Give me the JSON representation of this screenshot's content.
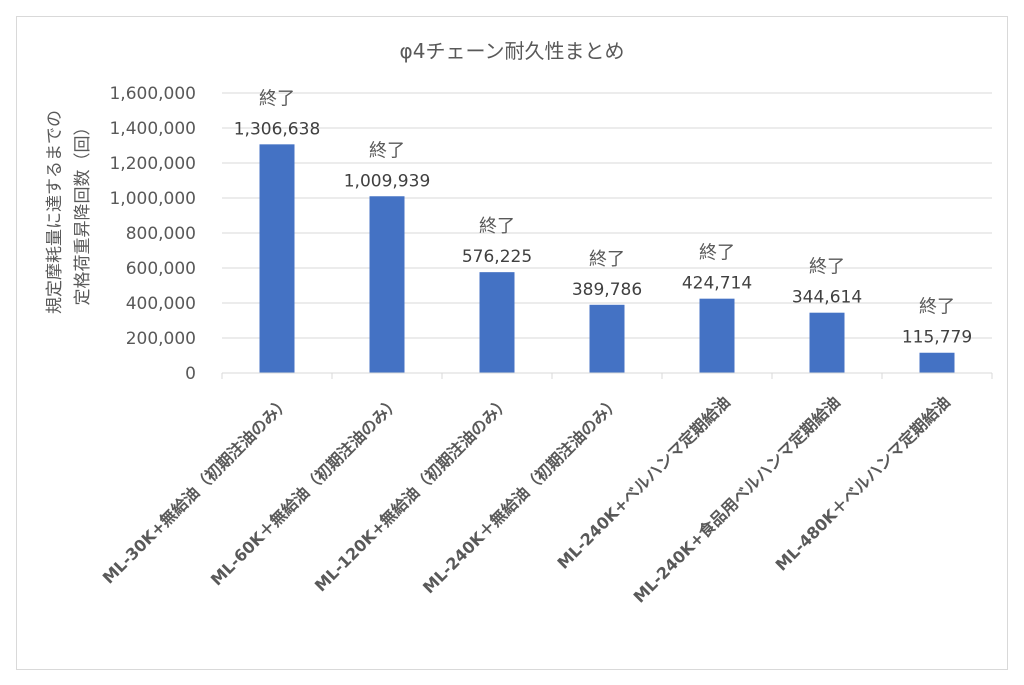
{
  "chart_data": {
    "type": "bar",
    "title": "φ4チェーン耐久性まとめ",
    "ylabel": [
      "規定摩耗量に達するまでの",
      "定格荷重昇降回数（回）"
    ],
    "xlabel": "",
    "ylim": [
      0,
      1600000
    ],
    "yticks": [
      0,
      200000,
      400000,
      600000,
      800000,
      1000000,
      1200000,
      1400000,
      1600000
    ],
    "ytick_labels": [
      "0",
      "200,000",
      "400,000",
      "600,000",
      "800,000",
      "1,000,000",
      "1,200,000",
      "1,400,000",
      "1,600,000"
    ],
    "grid": true,
    "legend": "none",
    "categories": [
      "ML-30K+無給油（初期注油のみ）",
      "ML-60K＋無給油（初期注油のみ）",
      "ML-120K+無給油（初期注油のみ）",
      "ML-240K＋無給油（初期注油のみ）",
      "ML-240K+ベルハンマ定期給油",
      "ML-240K+食品用ベルハンマ定期給油",
      "ML-480K＋ベルハンマ定期給油"
    ],
    "values": [
      1306638,
      1009939,
      576225,
      389786,
      424714,
      344614,
      115779
    ],
    "value_labels": [
      "1,306,638",
      "1,009,939",
      "576,225",
      "389,786",
      "424,714",
      "344,614",
      "115,779"
    ],
    "annotations": [
      "終了",
      "終了",
      "終了",
      "終了",
      "終了",
      "終了",
      "終了"
    ],
    "colors": {
      "bar": "#4472c4",
      "grid": "#d9d9d9",
      "text": "#595959",
      "label": "#404040",
      "border": "#d9d9d9"
    }
  }
}
